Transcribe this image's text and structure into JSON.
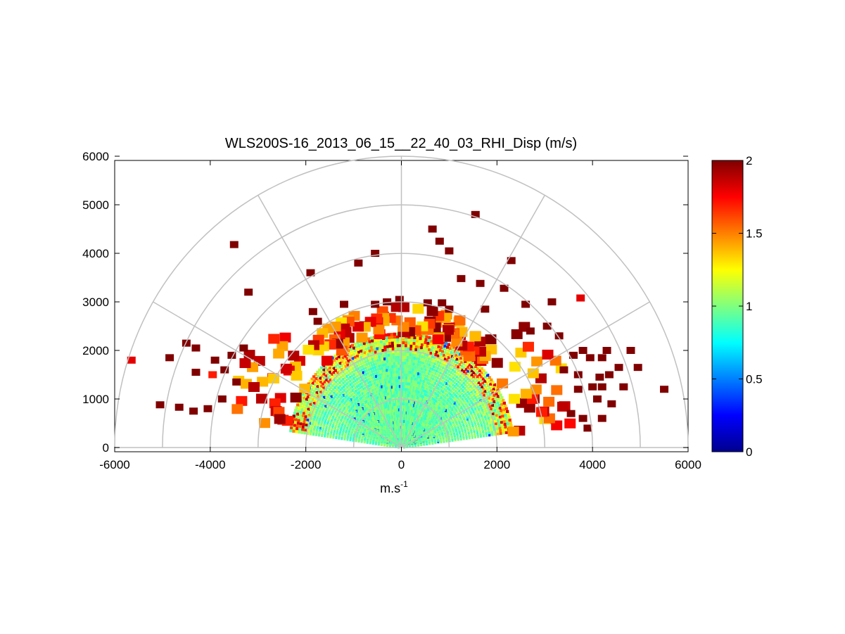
{
  "chart_data": {
    "type": "heatmap",
    "subtype": "polar-rhi-scan",
    "title": "WLS200S-16_2013_06_15__22_40_03_RHI_Disp (m/s)",
    "xlabel": "m.s",
    "xlabel_superscript": "-1",
    "ylabel": "",
    "xlim": [
      -6000,
      6000
    ],
    "ylim": [
      0,
      6000
    ],
    "xticks": [
      -6000,
      -4000,
      -2000,
      0,
      2000,
      4000,
      6000
    ],
    "yticks": [
      0,
      1000,
      2000,
      3000,
      4000,
      5000,
      6000
    ],
    "xtick_labels": [
      "-6000",
      "-4000",
      "-2000",
      "0",
      "2000",
      "4000",
      "6000"
    ],
    "ytick_labels": [
      "0",
      "1000",
      "2000",
      "3000",
      "4000",
      "5000",
      "6000"
    ],
    "polar_grid": {
      "range_rings": [
        1000,
        2000,
        3000,
        4000,
        5000,
        6000
      ],
      "spokes_deg": [
        0,
        30,
        60,
        90,
        120,
        150,
        180
      ]
    },
    "colorbar": {
      "colormap": "jet",
      "range": [
        0,
        2
      ],
      "ticks": [
        0,
        0.5,
        1,
        1.5,
        2
      ],
      "tick_labels": [
        "0",
        "0.5",
        "1",
        "1.5",
        "2"
      ]
    },
    "data_summary": {
      "core_max_range_m": 2350,
      "core_value_m_s": 0.95,
      "low_elevation_min_deg": 8,
      "sparse_high_value": 2
    },
    "scattered_cells": [
      {
        "x": -5650,
        "y": 1800,
        "v": 1.8
      },
      {
        "x": -3500,
        "y": 4180,
        "v": 2
      },
      {
        "x": -3550,
        "y": 1900,
        "v": 2
      },
      {
        "x": -3300,
        "y": 2050,
        "v": 2
      },
      {
        "x": -3900,
        "y": 1800,
        "v": 2
      },
      {
        "x": -4300,
        "y": 2050,
        "v": 2
      },
      {
        "x": -4500,
        "y": 2150,
        "v": 2
      },
      {
        "x": -4850,
        "y": 1850,
        "v": 2
      },
      {
        "x": -4300,
        "y": 1550,
        "v": 2
      },
      {
        "x": -3700,
        "y": 1600,
        "v": 2
      },
      {
        "x": -3450,
        "y": 1350,
        "v": 2
      },
      {
        "x": -3750,
        "y": 1000,
        "v": 2
      },
      {
        "x": -4050,
        "y": 800,
        "v": 2
      },
      {
        "x": -4350,
        "y": 750,
        "v": 2
      },
      {
        "x": -3950,
        "y": 1500,
        "v": 1.7
      },
      {
        "x": -5050,
        "y": 880,
        "v": 2
      },
      {
        "x": -4650,
        "y": 830,
        "v": 2
      },
      {
        "x": -3200,
        "y": 3200,
        "v": 2
      },
      {
        "x": -1900,
        "y": 3600,
        "v": 2
      },
      {
        "x": -900,
        "y": 3800,
        "v": 2
      },
      {
        "x": -550,
        "y": 4000,
        "v": 2
      },
      {
        "x": 650,
        "y": 4500,
        "v": 2
      },
      {
        "x": 800,
        "y": 4250,
        "v": 2
      },
      {
        "x": 1000,
        "y": 4050,
        "v": 2
      },
      {
        "x": 1550,
        "y": 4800,
        "v": 2
      },
      {
        "x": 1250,
        "y": 3480,
        "v": 2
      },
      {
        "x": 1650,
        "y": 3380,
        "v": 2
      },
      {
        "x": 2300,
        "y": 3850,
        "v": 2
      },
      {
        "x": 2150,
        "y": 3280,
        "v": 2
      },
      {
        "x": 2600,
        "y": 2950,
        "v": 2
      },
      {
        "x": 3150,
        "y": 3000,
        "v": 2
      },
      {
        "x": 3750,
        "y": 3080,
        "v": 1.8
      },
      {
        "x": 1750,
        "y": 2850,
        "v": 2
      },
      {
        "x": 3050,
        "y": 2500,
        "v": 2
      },
      {
        "x": -1200,
        "y": 2950,
        "v": 2
      },
      {
        "x": -550,
        "y": 2950,
        "v": 2
      },
      {
        "x": -300,
        "y": 3000,
        "v": 2
      },
      {
        "x": -40,
        "y": 3050,
        "v": 2
      },
      {
        "x": 550,
        "y": 2980,
        "v": 2
      },
      {
        "x": 850,
        "y": 2980,
        "v": 2
      },
      {
        "x": 1000,
        "y": 2850,
        "v": 2
      },
      {
        "x": -1850,
        "y": 2800,
        "v": 2
      },
      {
        "x": -1750,
        "y": 2600,
        "v": 2
      },
      {
        "x": 2700,
        "y": 2400,
        "v": 2
      },
      {
        "x": 3300,
        "y": 2300,
        "v": 2
      },
      {
        "x": 3600,
        "y": 1900,
        "v": 2
      },
      {
        "x": 3400,
        "y": 1600,
        "v": 2
      },
      {
        "x": 3800,
        "y": 2000,
        "v": 2
      },
      {
        "x": 3950,
        "y": 1850,
        "v": 2
      },
      {
        "x": 3700,
        "y": 1200,
        "v": 2
      },
      {
        "x": 4150,
        "y": 1450,
        "v": 2
      },
      {
        "x": 4350,
        "y": 1500,
        "v": 2
      },
      {
        "x": 4200,
        "y": 1850,
        "v": 2
      },
      {
        "x": 4300,
        "y": 2000,
        "v": 2
      },
      {
        "x": 4550,
        "y": 1650,
        "v": 2
      },
      {
        "x": 4650,
        "y": 1250,
        "v": 2
      },
      {
        "x": 4400,
        "y": 900,
        "v": 2
      },
      {
        "x": 4200,
        "y": 600,
        "v": 2
      },
      {
        "x": 4100,
        "y": 1000,
        "v": 2
      },
      {
        "x": 3800,
        "y": 600,
        "v": 2
      },
      {
        "x": 3900,
        "y": 400,
        "v": 2
      },
      {
        "x": 4200,
        "y": 1250,
        "v": 2
      },
      {
        "x": 4800,
        "y": 2000,
        "v": 2
      },
      {
        "x": 4950,
        "y": 1650,
        "v": 2
      },
      {
        "x": 3700,
        "y": 1500,
        "v": 2
      },
      {
        "x": 4000,
        "y": 1250,
        "v": 2
      },
      {
        "x": 3550,
        "y": 700,
        "v": 2
      },
      {
        "x": 5500,
        "y": 1200,
        "v": 2
      }
    ]
  }
}
